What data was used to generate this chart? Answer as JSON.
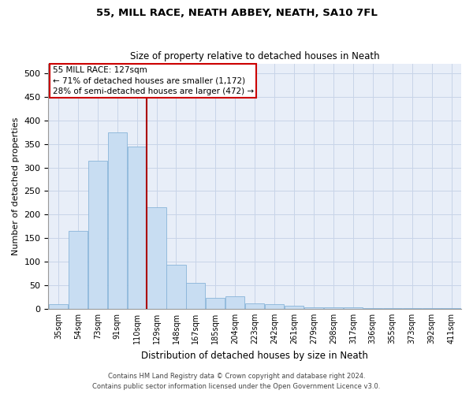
{
  "title": "55, MILL RACE, NEATH ABBEY, NEATH, SA10 7FL",
  "subtitle": "Size of property relative to detached houses in Neath",
  "xlabel": "Distribution of detached houses by size in Neath",
  "ylabel": "Number of detached properties",
  "bar_color": "#c8ddf2",
  "bar_edge_color": "#89b4d9",
  "grid_color": "#c8d4e8",
  "background_color": "#e8eef8",
  "annotation_text": "55 MILL RACE: 127sqm\n← 71% of detached houses are smaller (1,172)\n28% of semi-detached houses are larger (472) →",
  "vline_color": "#aa0000",
  "vline_bin_index": 4,
  "footer_line1": "Contains HM Land Registry data © Crown copyright and database right 2024.",
  "footer_line2": "Contains public sector information licensed under the Open Government Licence v3.0.",
  "categories": [
    "35sqm",
    "54sqm",
    "73sqm",
    "91sqm",
    "110sqm",
    "129sqm",
    "148sqm",
    "167sqm",
    "185sqm",
    "204sqm",
    "223sqm",
    "242sqm",
    "261sqm",
    "279sqm",
    "298sqm",
    "317sqm",
    "336sqm",
    "355sqm",
    "373sqm",
    "392sqm",
    "411sqm"
  ],
  "bar_heights": [
    10,
    165,
    315,
    375,
    345,
    215,
    93,
    55,
    23,
    27,
    12,
    10,
    6,
    4,
    3,
    3,
    1,
    1,
    1,
    1,
    1
  ],
  "ylim": [
    0,
    520
  ],
  "yticks": [
    0,
    50,
    100,
    150,
    200,
    250,
    300,
    350,
    400,
    450,
    500
  ]
}
